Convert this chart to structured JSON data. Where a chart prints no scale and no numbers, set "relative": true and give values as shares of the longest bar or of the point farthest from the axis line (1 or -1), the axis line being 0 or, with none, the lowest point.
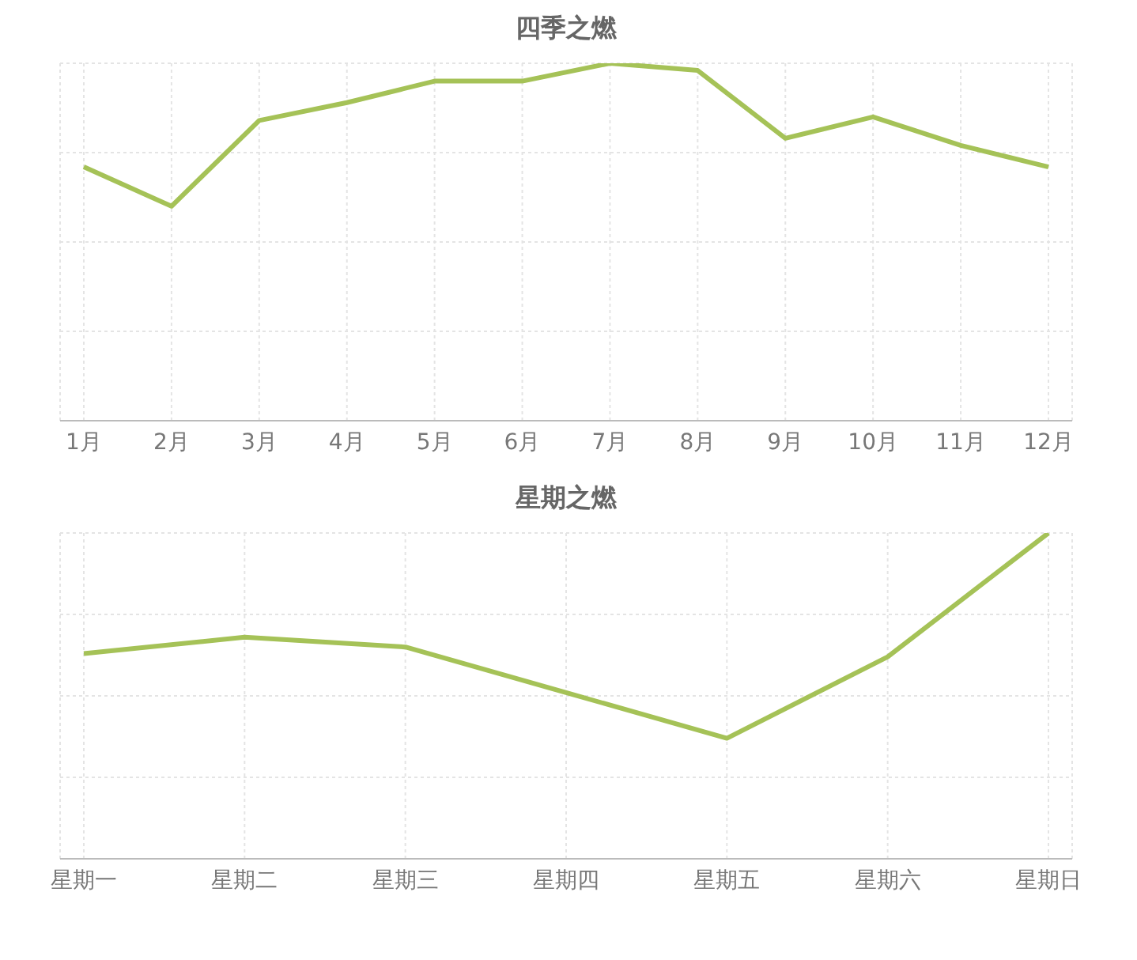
{
  "chart_data": [
    {
      "type": "line",
      "title": "四季之燃",
      "categories": [
        "1月",
        "2月",
        "3月",
        "4月",
        "5月",
        "6月",
        "7月",
        "8月",
        "9月",
        "10月",
        "11月",
        "12月"
      ],
      "relative": true,
      "grid": true,
      "legend": false,
      "marker": "none",
      "series": [
        {
          "color": "#a5c257",
          "values": [
            0.71,
            0.6,
            0.84,
            0.89,
            0.95,
            0.95,
            1,
            0.98,
            0.79,
            0.85,
            0.77,
            0.71
          ]
        }
      ]
    },
    {
      "type": "line",
      "title": "星期之燃",
      "categories": [
        "星期一",
        "星期二",
        "星期三",
        "星期四",
        "星期五",
        "星期六",
        "星期日"
      ],
      "relative": true,
      "grid": true,
      "legend": false,
      "marker": "none",
      "series": [
        {
          "color": "#a5c257",
          "values": [
            0.63,
            0.68,
            0.65,
            0.51,
            0.37,
            0.62,
            1
          ]
        }
      ]
    }
  ]
}
